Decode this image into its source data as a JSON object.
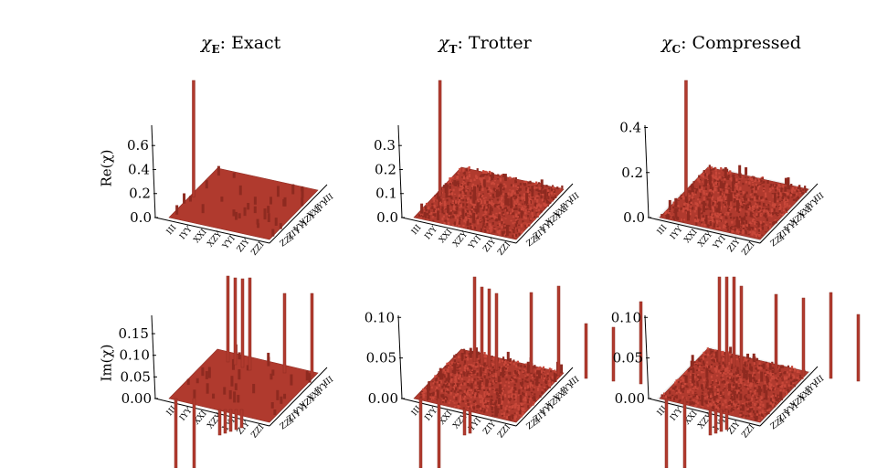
{
  "figure": {
    "columns": [
      {
        "symbol": "χ",
        "subscript": "E",
        "title": "Exact"
      },
      {
        "symbol": "χ",
        "subscript": "T",
        "title": "Trotter"
      },
      {
        "symbol": "χ",
        "subscript": "C",
        "title": "Compressed"
      }
    ],
    "rows": [
      {
        "label": "Re(χ)"
      },
      {
        "label": "Im(χ)"
      }
    ],
    "axis_tick_labels": [
      "III",
      "IYY",
      "XXI",
      "XZY",
      "YYI",
      "ZIY",
      "ZZI"
    ],
    "bar_color": "#b03a2e",
    "bar_color_dark": "#8e2a20",
    "bar_color_light": "#c9483a"
  },
  "chart_data": [
    {
      "type": "bar3d",
      "panel": "Re-Exact",
      "title": "χE: Exact",
      "zlabel": "Re(χ)",
      "zticks": [
        "0.0",
        "0.2",
        "0.4",
        "0.6"
      ],
      "zlim": [
        0,
        0.7
      ],
      "x_tick_labels": [
        "III",
        "IYY",
        "XXI",
        "XZY",
        "YYI",
        "ZIY",
        "ZZI"
      ],
      "y_tick_labels": [
        "III",
        "IYY",
        "XXI",
        "XZY",
        "YYI",
        "ZIY",
        "ZZI"
      ],
      "peak": {
        "x": "III",
        "y": "III",
        "value": 1.0
      },
      "noise": 0.0,
      "minor_bar_height": 0.05
    },
    {
      "type": "bar3d",
      "panel": "Re-Trotter",
      "title": "χT: Trotter",
      "zlabel": "Re(χ)",
      "zticks": [
        "0.0",
        "0.1",
        "0.2",
        "0.3"
      ],
      "zlim": [
        0,
        0.35
      ],
      "x_tick_labels": [
        "III",
        "IYY",
        "XXI",
        "XZY",
        "YYI",
        "ZIY",
        "ZZI"
      ],
      "y_tick_labels": [
        "III",
        "IYY",
        "XXI",
        "XZY",
        "YYI",
        "ZIY",
        "ZZI"
      ],
      "peak": {
        "x": "III",
        "y": "III",
        "value": 0.5
      },
      "noise": 0.01,
      "minor_bar_height": 0.03
    },
    {
      "type": "bar3d",
      "panel": "Re-Compressed",
      "title": "χC: Compressed",
      "zlabel": "Re(χ)",
      "zticks": [
        "0.0",
        "0.2",
        "0.4"
      ],
      "zlim": [
        0,
        0.45
      ],
      "x_tick_labels": [
        "III",
        "IYY",
        "XXI",
        "XZY",
        "YYI",
        "ZIY",
        "ZZI"
      ],
      "y_tick_labels": [
        "III",
        "IYY",
        "XXI",
        "XZY",
        "YYI",
        "ZIY",
        "ZZI"
      ],
      "peak": {
        "x": "III",
        "y": "III",
        "value": 0.7
      },
      "noise": 0.008,
      "minor_bar_height": 0.03
    },
    {
      "type": "bar3d",
      "panel": "Im-Exact",
      "title": "χE: Exact",
      "zlabel": "Im(χ)",
      "zticks": [
        "0.00",
        "0.05",
        "0.10",
        "0.15"
      ],
      "zlim": [
        0,
        0.19
      ],
      "x_tick_labels": [
        "III",
        "IYY",
        "XXI",
        "XZY",
        "YYI",
        "ZIY",
        "ZZI"
      ],
      "y_tick_labels": [
        "III",
        "IYY",
        "XXI",
        "XZY",
        "YYI",
        "ZIY",
        "ZZI"
      ],
      "noise": 0.0,
      "minor_bar_height": 0.015,
      "tall_positive_bars": 6,
      "tall_negative_bars": 7
    },
    {
      "type": "bar3d",
      "panel": "Im-Trotter",
      "title": "χT: Trotter",
      "zlabel": "Im(χ)",
      "zticks": [
        "0.00",
        "0.05",
        "0.10"
      ],
      "zlim": [
        0,
        0.11
      ],
      "x_tick_labels": [
        "III",
        "IYY",
        "XXI",
        "XZY",
        "YYI",
        "ZIY",
        "ZZI"
      ],
      "y_tick_labels": [
        "III",
        "IYY",
        "XXI",
        "XZY",
        "YYI",
        "ZIY",
        "ZZI"
      ],
      "noise": 0.006,
      "minor_bar_height": 0.01,
      "tall_positive_bars": 9,
      "tall_negative_bars": 4
    },
    {
      "type": "bar3d",
      "panel": "Im-Compressed",
      "title": "χC: Compressed",
      "zlabel": "Im(χ)",
      "zticks": [
        "0.00",
        "0.05",
        "0.10"
      ],
      "zlim": [
        0,
        0.12
      ],
      "x_tick_labels": [
        "III",
        "IYY",
        "XXI",
        "XZY",
        "YYI",
        "ZIY",
        "ZZI"
      ],
      "y_tick_labels": [
        "III",
        "IYY",
        "XXI",
        "XZY",
        "YYI",
        "ZIY",
        "ZZI"
      ],
      "noise": 0.006,
      "minor_bar_height": 0.01,
      "tall_positive_bars": 8,
      "tall_negative_bars": 6
    }
  ]
}
